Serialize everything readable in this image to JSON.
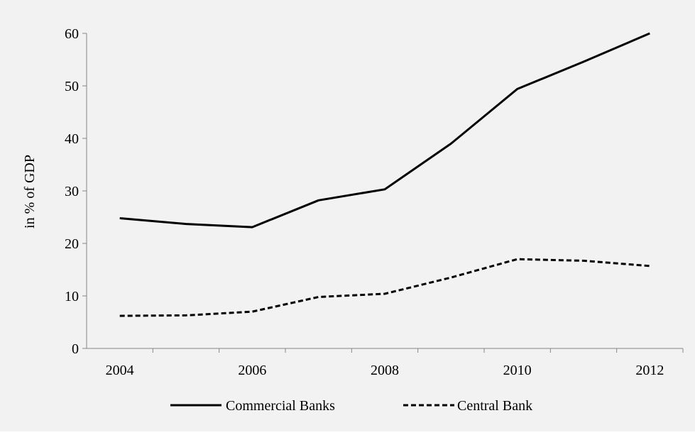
{
  "chart_data": {
    "type": "line",
    "title": "",
    "xlabel": "",
    "ylabel": "in % of GDP",
    "x": [
      2004,
      2005,
      2006,
      2007,
      2008,
      2009,
      2010,
      2011,
      2012
    ],
    "xticks": [
      "2004",
      "2006",
      "2008",
      "2010",
      "2012"
    ],
    "yticks": [
      "0",
      "10",
      "20",
      "30",
      "40",
      "50",
      "60"
    ],
    "ylim": [
      0,
      60
    ],
    "grid": false,
    "legend_position": "bottom",
    "series": [
      {
        "name": "Commercial Banks",
        "style": "solid",
        "color": "#000000",
        "values": [
          24.8,
          23.7,
          23.1,
          28.2,
          30.3,
          39.0,
          49.4,
          54.6,
          60.0
        ]
      },
      {
        "name": "Central Bank",
        "style": "dashed",
        "color": "#000000",
        "values": [
          6.2,
          6.3,
          7.0,
          9.8,
          10.4,
          13.5,
          17.0,
          16.7,
          15.7
        ]
      }
    ]
  }
}
